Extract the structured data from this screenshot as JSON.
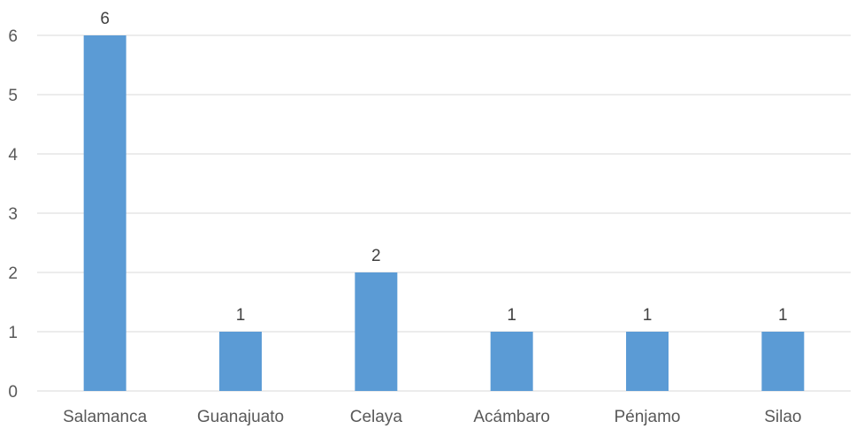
{
  "chart_data": {
    "type": "bar",
    "title": "",
    "categories": [
      "Salamanca",
      "Guanajuato",
      "Celaya",
      "Acámbaro",
      "Pénjamo",
      "Silao"
    ],
    "values": [
      6,
      1,
      2,
      1,
      1,
      1
    ],
    "data_labels": [
      "6",
      "1",
      "2",
      "1",
      "1",
      "1"
    ],
    "ylim": [
      0,
      6
    ],
    "yticks": [
      "0",
      "1",
      "2",
      "3",
      "4",
      "5",
      "6"
    ],
    "xlabel": "",
    "ylabel": "",
    "grid": true,
    "legend": "none",
    "bar_color": "#5b9bd5"
  }
}
